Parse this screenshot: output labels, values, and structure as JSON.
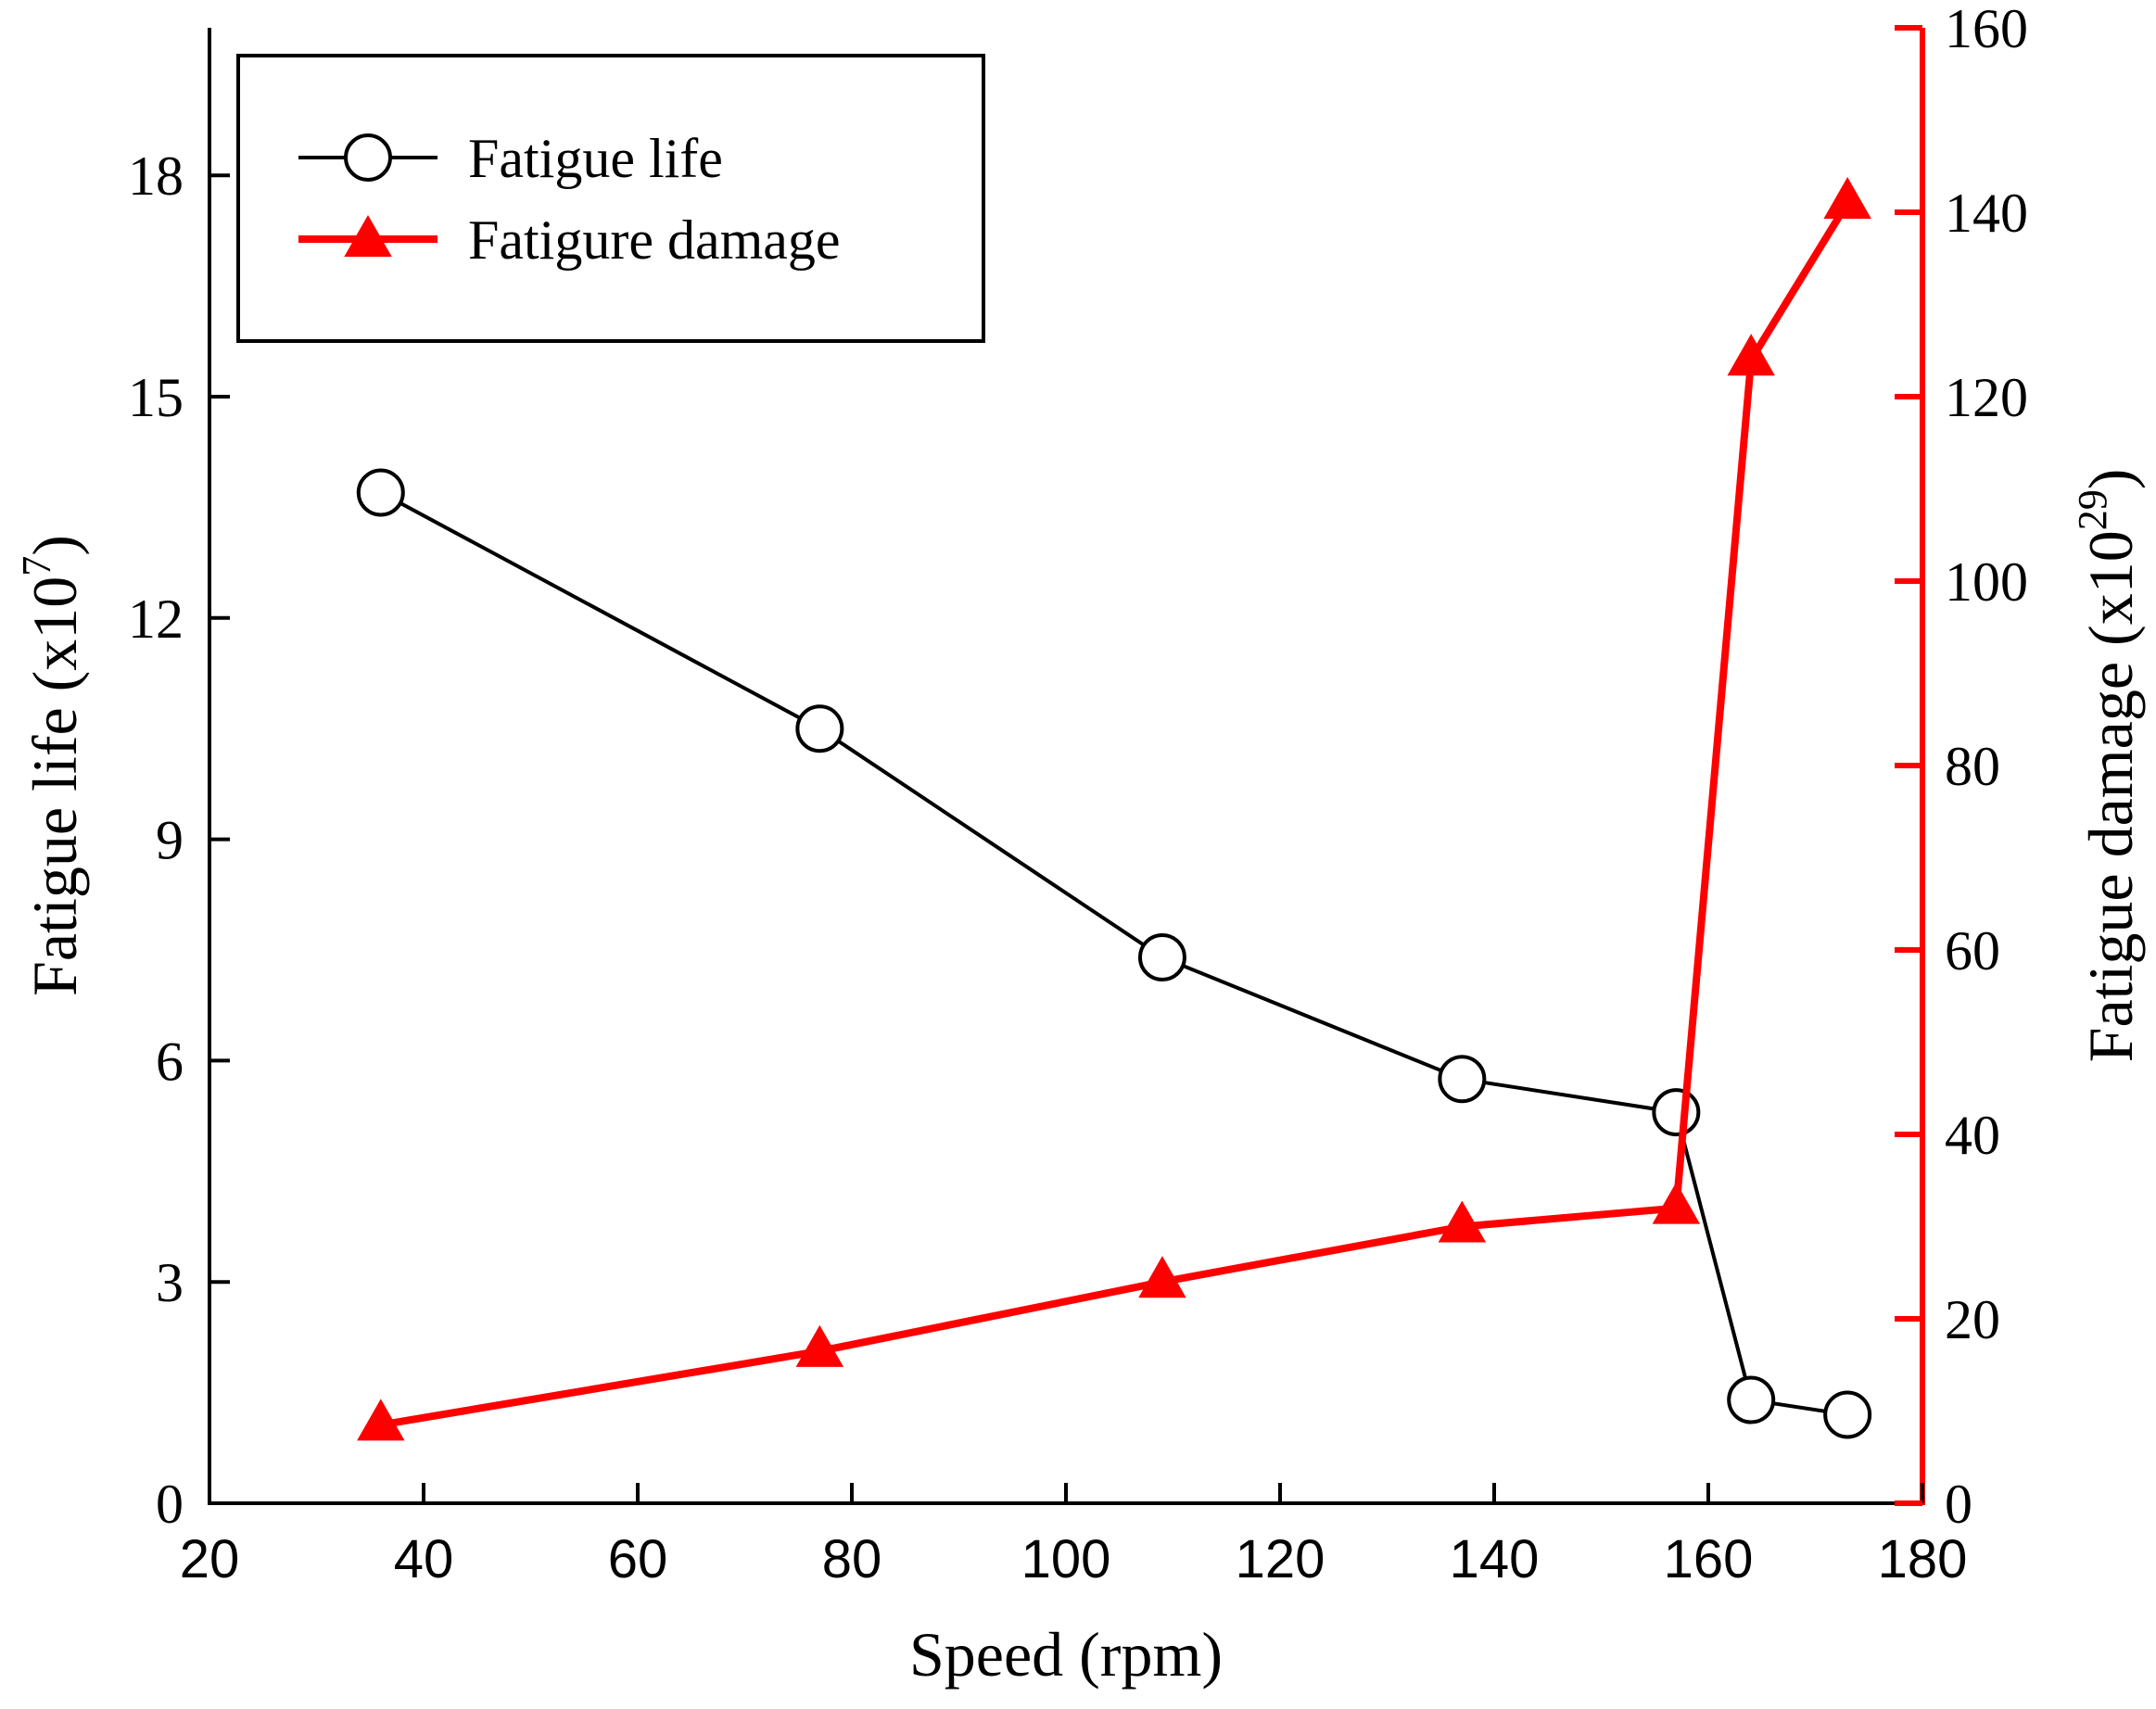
{
  "chart_data": {
    "type": "line",
    "xlabel": "Speed (rpm)",
    "xlim": [
      20,
      180
    ],
    "xticks": [
      "20",
      "40",
      "60",
      "80",
      "100",
      "120",
      "140",
      "160",
      "180"
    ],
    "y_left": {
      "label_main": "Fatigue life (x10",
      "label_sup": "7",
      "label_end": ")",
      "lim": [
        0,
        20
      ],
      "ticks": [
        "0",
        "3",
        "6",
        "9",
        "12",
        "15",
        "18"
      ]
    },
    "y_right": {
      "label_main": "Fatigue damage (x10",
      "label_sup": "29",
      "label_end": ")",
      "lim": [
        0,
        160
      ],
      "ticks": [
        "0",
        "20",
        "40",
        "60",
        "80",
        "100",
        "120",
        "140",
        "160"
      ],
      "color": "#ff0000"
    },
    "legend_position": "top-left",
    "series": [
      {
        "name": "Fatigue life",
        "axis": "left",
        "color": "#000000",
        "marker": "circle",
        "x": [
          36,
          77,
          109,
          137,
          157,
          164,
          173
        ],
        "y": [
          13.7,
          10.5,
          7.4,
          5.75,
          5.3,
          1.4,
          1.2
        ]
      },
      {
        "name": "Fatigure damage",
        "axis": "right",
        "color": "#ff0000",
        "marker": "triangle",
        "x": [
          36,
          77,
          109,
          137,
          157,
          164,
          173
        ],
        "y": [
          8.5,
          16.5,
          24,
          30,
          32,
          124,
          141
        ]
      }
    ]
  }
}
